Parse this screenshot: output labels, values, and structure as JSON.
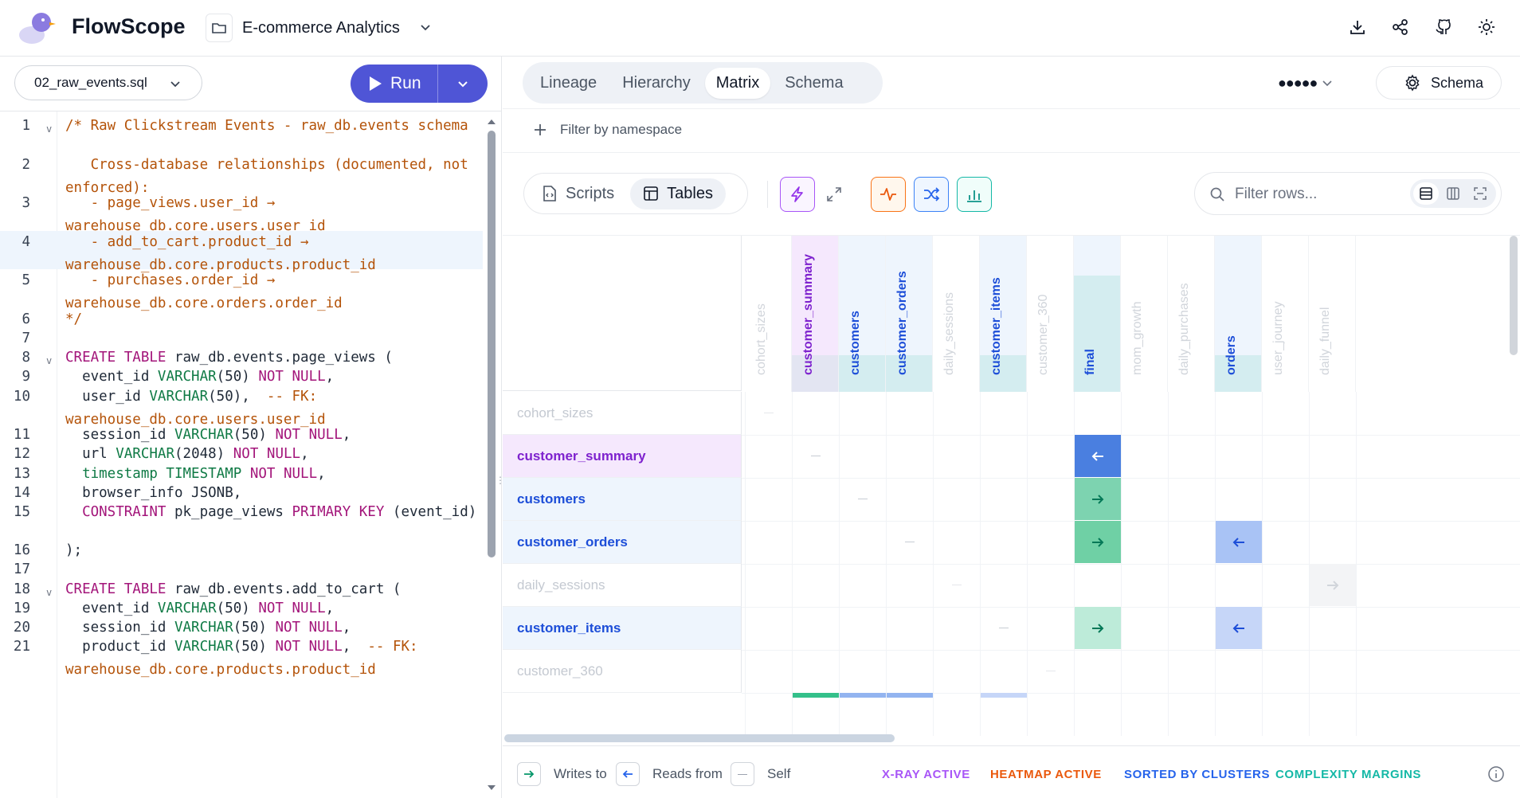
{
  "app": {
    "brand": "FlowScope",
    "project": "E-commerce Analytics",
    "icons": [
      "download-icon",
      "share-icon",
      "github-icon",
      "sun-icon"
    ]
  },
  "editor": {
    "file": "02_raw_events.sql",
    "run_label": "Run",
    "lines": [
      {
        "n": "1",
        "html": "<span class='cm'>/* Raw Clickstream Events - raw_db.events schema</span>"
      },
      {
        "n": "2",
        "html": "<span class='cm'>   Cross-database relationships (documented, not enforced):</span>"
      },
      {
        "n": "3",
        "html": "<span class='cm'>   - page_views.user_id → warehouse_db.core.users.user_id</span>"
      },
      {
        "n": "4",
        "html": "<span class='cm'>   - add_to_cart.product_id → warehouse_db.core.products.product_id</span>"
      },
      {
        "n": "5",
        "html": "<span class='cm'>   - purchases.order_id → warehouse_db.core.orders.order_id</span>"
      },
      {
        "n": "6",
        "html": "<span class='cm'>*/</span>"
      },
      {
        "n": "7",
        "html": ""
      },
      {
        "n": "8",
        "html": "<span class='kw'>CREATE TABLE</span> raw_db.events.page_views ("
      },
      {
        "n": "9",
        "html": "  event_id <span class='ty'>VARCHAR</span>(50) <span class='kw'>NOT NULL</span>,"
      },
      {
        "n": "10",
        "html": "  user_id <span class='ty'>VARCHAR</span>(50),  <span class='cm'>-- FK: warehouse_db.core.users.user_id</span>"
      },
      {
        "n": "11",
        "html": "  session_id <span class='ty'>VARCHAR</span>(50) <span class='kw'>NOT NULL</span>,"
      },
      {
        "n": "12",
        "html": "  url <span class='ty'>VARCHAR</span>(2048) <span class='kw'>NOT NULL</span>,"
      },
      {
        "n": "13",
        "html": "  <span class='ty'>timestamp TIMESTAMP</span> <span class='kw'>NOT NULL</span>,"
      },
      {
        "n": "14",
        "html": "  browser_info JSONB,"
      },
      {
        "n": "15",
        "html": "  <span class='kw'>CONSTRAINT</span> pk_page_views <span class='kw'>PRIMARY KEY</span> (event_id)"
      },
      {
        "n": "16",
        "html": ");"
      },
      {
        "n": "17",
        "html": ""
      },
      {
        "n": "18",
        "html": "<span class='kw'>CREATE TABLE</span> raw_db.events.add_to_cart ("
      },
      {
        "n": "19",
        "html": "  event_id <span class='ty'>VARCHAR</span>(50) <span class='kw'>NOT NULL</span>,"
      },
      {
        "n": "20",
        "html": "  session_id <span class='ty'>VARCHAR</span>(50) <span class='kw'>NOT NULL</span>,"
      },
      {
        "n": "21",
        "html": "  product_id <span class='ty'>VARCHAR</span>(50) <span class='kw'>NOT NULL</span>,  <span class='cm'>-- FK: warehouse_db.core.products.product_id</span>"
      }
    ]
  },
  "view": {
    "tabs": [
      "Lineage",
      "Hierarchy",
      "Matrix",
      "Schema"
    ],
    "active_tab": "Matrix",
    "dots": "●●●●●",
    "schema_button": "Schema",
    "filter_namespace": "Filter by namespace",
    "toggle": {
      "scripts": "Scripts",
      "tables": "Tables"
    },
    "filter_placeholder": "Filter rows..."
  },
  "matrix": {
    "columns": [
      {
        "name": "cohort_sizes",
        "faded": true
      },
      {
        "name": "customer_summary",
        "color": "#7e22ce"
      },
      {
        "name": "customers",
        "color": "#1d4ed8"
      },
      {
        "name": "customer_orders",
        "color": "#1d4ed8"
      },
      {
        "name": "daily_sessions",
        "faded": true
      },
      {
        "name": "customer_items",
        "color": "#1d4ed8"
      },
      {
        "name": "customer_360",
        "faded": true
      },
      {
        "name": "final",
        "color": "#1d4ed8"
      },
      {
        "name": "mom_growth",
        "faded": true
      },
      {
        "name": "daily_purchases",
        "faded": true
      },
      {
        "name": "orders",
        "color": "#1d4ed8"
      },
      {
        "name": "user_journey",
        "faded": true
      },
      {
        "name": "daily_funnel",
        "faded": true
      }
    ],
    "rows": [
      {
        "name": "cohort_sizes",
        "faded": true
      },
      {
        "name": "customer_summary",
        "color": "#7e22ce",
        "bg": "#f5e8fd"
      },
      {
        "name": "customers",
        "color": "#1d4ed8",
        "bg": "#eef5fd"
      },
      {
        "name": "customer_orders",
        "color": "#1d4ed8",
        "bg": "#eef5fd"
      },
      {
        "name": "daily_sessions",
        "faded": true
      },
      {
        "name": "customer_items",
        "color": "#1d4ed8",
        "bg": "#eef5fd"
      },
      {
        "name": "customer_360",
        "faded": true
      }
    ]
  },
  "legend": {
    "writes": "Writes to",
    "reads": "Reads from",
    "self": "Self",
    "xray": "X-RAY ACTIVE",
    "heatmap": "HEATMAP ACTIVE",
    "sorted": "SORTED BY CLUSTERS",
    "complexity": "COMPLEXITY MARGINS",
    "colors": {
      "xray": "#a855f7",
      "heatmap": "#ea580c",
      "sorted": "#2563eb",
      "complexity": "#14b8a6"
    }
  }
}
